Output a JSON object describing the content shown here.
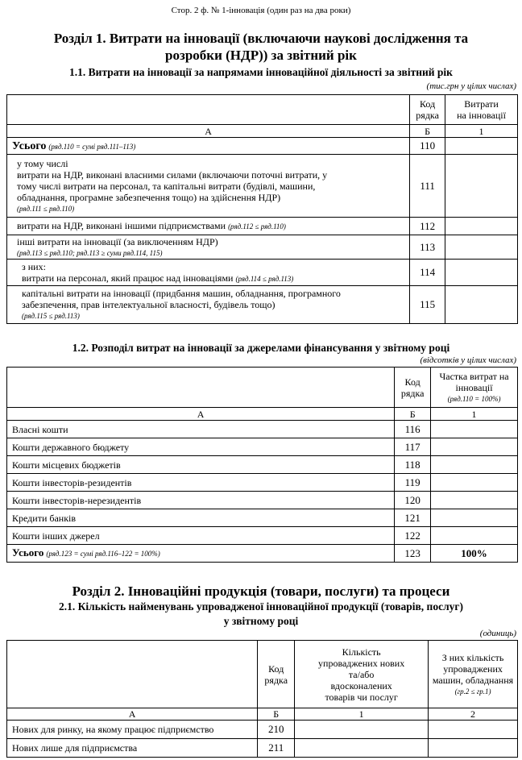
{
  "page_header": "Стор. 2 ф. № 1-інновація (один раз на два роки)",
  "section1": {
    "title_line1": "Розділ 1. Витрати на інновації (включаючи наукові дослідження та",
    "title_line2": "розробки (НДР)) за звітний рік",
    "t11": {
      "title": "1.1. Витрати на інновації за напрямами інноваційної діяльності за звітний рік",
      "units": "(тис.грн у цілих числах)",
      "col_code": "Код рядка",
      "col_value_l1": "Витрати",
      "col_value_l2": "на інновації",
      "index": [
        "А",
        "Б",
        "1"
      ],
      "rows": [
        {
          "lines": [],
          "label_bold": "Усього",
          "note": "(ряд.110 = сумі ряд.111–113)",
          "code": "110"
        },
        {
          "lines": [
            "у тому числі",
            "витрати на НДР, виконані власними силами (включаючи поточні витрати, у",
            "тому числі витрати на персонал, та капітальні витрати (будівлі, машини,",
            "обладнання, програмне забезпечення тощо) на здійснення НДР)"
          ],
          "note": "(ряд.111 ≤ ряд.110)",
          "code": "111"
        },
        {
          "text": "витрати на НДР, виконані іншими підприємствами",
          "note": "(ряд.112 ≤ ряд.110)",
          "code": "112"
        },
        {
          "text": "інші витрати на інновації (за виключенням НДР)",
          "note": "(ряд.113 ≤ ряд.110; ряд.113 ≥ суми ряд.114, 115)",
          "code": "113"
        },
        {
          "pre": "з них:",
          "text": "витрати на персонал, який працює над інноваціями",
          "note": "(ряд.114 ≤ ряд.113)",
          "code": "114"
        },
        {
          "lines": [
            "капітальні витрати на інновації (придбання машин, обладнання, програмного",
            "забезпечення, прав інтелектуальної власності, будівель тощо)"
          ],
          "note": "(ряд.115 ≤ ряд.113)",
          "code": "115"
        }
      ]
    },
    "t12": {
      "title": "1.2. Розподіл витрат на інновації за джерелами фінансування у звітному році",
      "units": "(відсотків у цілих числах)",
      "col_code": "Код рядка",
      "col_value_l1": "Частка витрат на",
      "col_value_l2": "інновації",
      "col_value_note": "(ряд.110 = 100%)",
      "index": [
        "А",
        "Б",
        "1"
      ],
      "rows": [
        {
          "label": "Власні кошти",
          "code": "116"
        },
        {
          "label": "Кошти державного бюджету",
          "code": "117"
        },
        {
          "label": "Кошти місцевих бюджетів",
          "code": "118"
        },
        {
          "label": "Кошти інвесторів-резидентів",
          "code": "119"
        },
        {
          "label": "Кошти інвесторів-нерезидентів",
          "code": "120"
        },
        {
          "label": "Кредити банків",
          "code": "121"
        },
        {
          "label": "Кошти інших джерел",
          "code": "122"
        }
      ],
      "total": {
        "label": "Усього",
        "note": "(ряд.123 = сумі ряд.116–122 = 100%)",
        "code": "123",
        "value": "100%"
      }
    }
  },
  "section2": {
    "title": "Розділ 2. Інноваційні продукція (товари, послуги) та процеси",
    "t21": {
      "title_line1": "2.1. Кількість найменувань упровадженої інноваційної продукції (товарів, послуг)",
      "title_line2": "у звітному році",
      "units": "(одиниць)",
      "col_code": "Код рядка",
      "col1": "Кількість упроваджених нових та/або вдосконалених товарів чи послуг",
      "col2": "З них кількість упроваджених машин, обладнання",
      "col2_note": "(гр.2 ≤ гр.1)",
      "index": [
        "А",
        "Б",
        "1",
        "2"
      ],
      "rows": [
        {
          "label": "Нових для ринку, на якому працює підприємство",
          "code": "210"
        },
        {
          "label": "Нових лише для підприємства",
          "code": "211"
        }
      ]
    }
  }
}
